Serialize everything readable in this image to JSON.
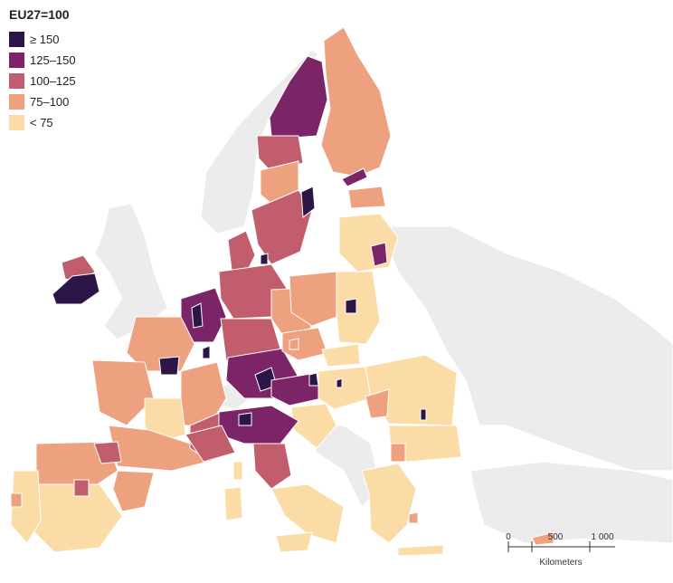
{
  "legend": {
    "title": "EU27=100",
    "items": [
      {
        "label": "≥ 150",
        "color": "#2b1647"
      },
      {
        "label": "125–150",
        "color": "#7b2468"
      },
      {
        "label": "100–125",
        "color": "#c25d6e"
      },
      {
        "label": "75–100",
        "color": "#eda17f"
      },
      {
        "label": "< 75",
        "color": "#fbdca6"
      }
    ]
  },
  "scale_bar": {
    "ticks": [
      "0",
      "500",
      "1 000"
    ],
    "unit": "Kilometers"
  },
  "colors": {
    "non_eu_land": "#ececec",
    "border": "#ffffff"
  }
}
